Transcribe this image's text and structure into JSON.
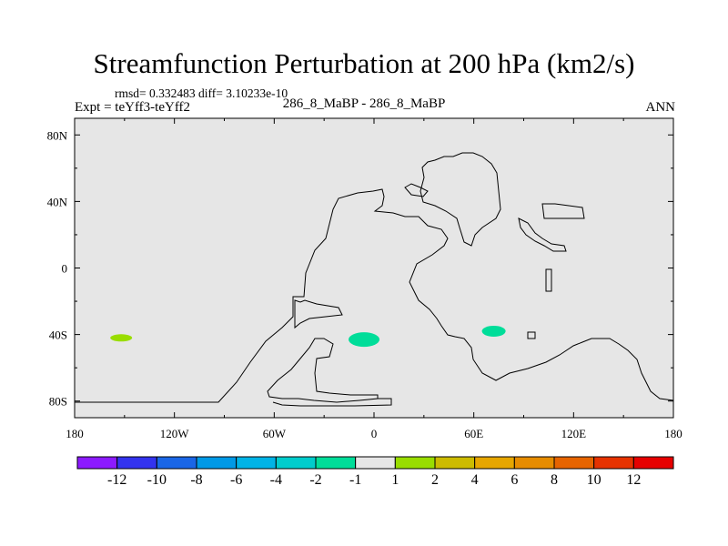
{
  "title": "Streamfunction Perturbation at 200 hPa (km2/s)",
  "stats": "rmsd= 0.332483 diff= 3.10233e-10",
  "expt": "Expt = teYff3-teYff2",
  "case": "286_8_MaBP - 286_8_MaBP",
  "season": "ANN",
  "chart_data": {
    "type": "contour-map",
    "title": "Streamfunction Perturbation at 200 hPa (km2/s)",
    "lon_range": [
      -180,
      180
    ],
    "lat_range": [
      -90,
      90
    ],
    "x_ticks": [
      {
        "lon": -180,
        "label": "180"
      },
      {
        "lon": -120,
        "label": "120W"
      },
      {
        "lon": -60,
        "label": "60W"
      },
      {
        "lon": 0,
        "label": "0"
      },
      {
        "lon": 60,
        "label": "60E"
      },
      {
        "lon": 120,
        "label": "120E"
      },
      {
        "lon": 180,
        "label": "180"
      }
    ],
    "y_ticks": [
      {
        "lat": 80,
        "label": "80N"
      },
      {
        "lat": 40,
        "label": "40N"
      },
      {
        "lat": 0,
        "label": "0"
      },
      {
        "lat": -40,
        "label": "40S"
      },
      {
        "lat": -80,
        "label": "80S"
      }
    ],
    "background_fill": "#e6e6e6",
    "colorbar": {
      "colors": [
        "#8c1aff",
        "#3333ee",
        "#1a66e6",
        "#0099e6",
        "#00b3e6",
        "#00cccc",
        "#00dd99",
        "#e6e6e6",
        "#99dd00",
        "#ccbb00",
        "#e6a600",
        "#e68c00",
        "#e66400",
        "#e63200",
        "#e60000"
      ],
      "labels": [
        "-12",
        "-10",
        "-8",
        "-6",
        "-4",
        "-2",
        "-1",
        "1",
        "2",
        "4",
        "6",
        "8",
        "10",
        "12"
      ]
    },
    "anomalies": [
      {
        "lon": -152,
        "lat": -42,
        "value": 1.5,
        "color": "#99dd00"
      },
      {
        "lon": -6,
        "lat": -43,
        "value": -1.5,
        "color": "#00dd99"
      },
      {
        "lon": 72,
        "lat": -38,
        "value": -1.5,
        "color": "#00dd99"
      }
    ]
  }
}
